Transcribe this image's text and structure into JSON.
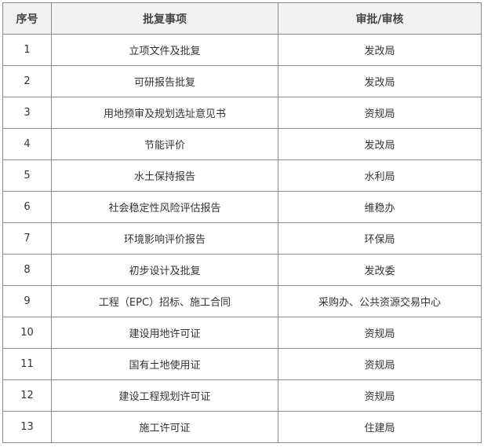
{
  "headers": [
    "序号",
    "批复事项",
    "审批/审核"
  ],
  "rows": [
    [
      "1",
      "立项文件及批复",
      "发改局"
    ],
    [
      "2",
      "可研报告批复",
      "发改局"
    ],
    [
      "3",
      "用地预审及规划选址意见书",
      "资规局"
    ],
    [
      "4",
      "节能评价",
      "发改局"
    ],
    [
      "5",
      "水土保持报告",
      "水利局"
    ],
    [
      "6",
      "社会稳定性风险评估报告",
      "维稳办"
    ],
    [
      "7",
      "环境影响评价报告",
      "环保局"
    ],
    [
      "8",
      "初步设计及批复",
      "发改委"
    ],
    [
      "9",
      "工程（EPC）招标、施工合同",
      "采购办、公共资源交易中心"
    ],
    [
      "10",
      "建设用地许可证",
      "资规局"
    ],
    [
      "11",
      "国有土地使用证",
      "资规局"
    ],
    [
      "12",
      "建设工程规划许可证",
      "资规局"
    ],
    [
      "13",
      "施工许可证",
      "住建局"
    ]
  ]
}
